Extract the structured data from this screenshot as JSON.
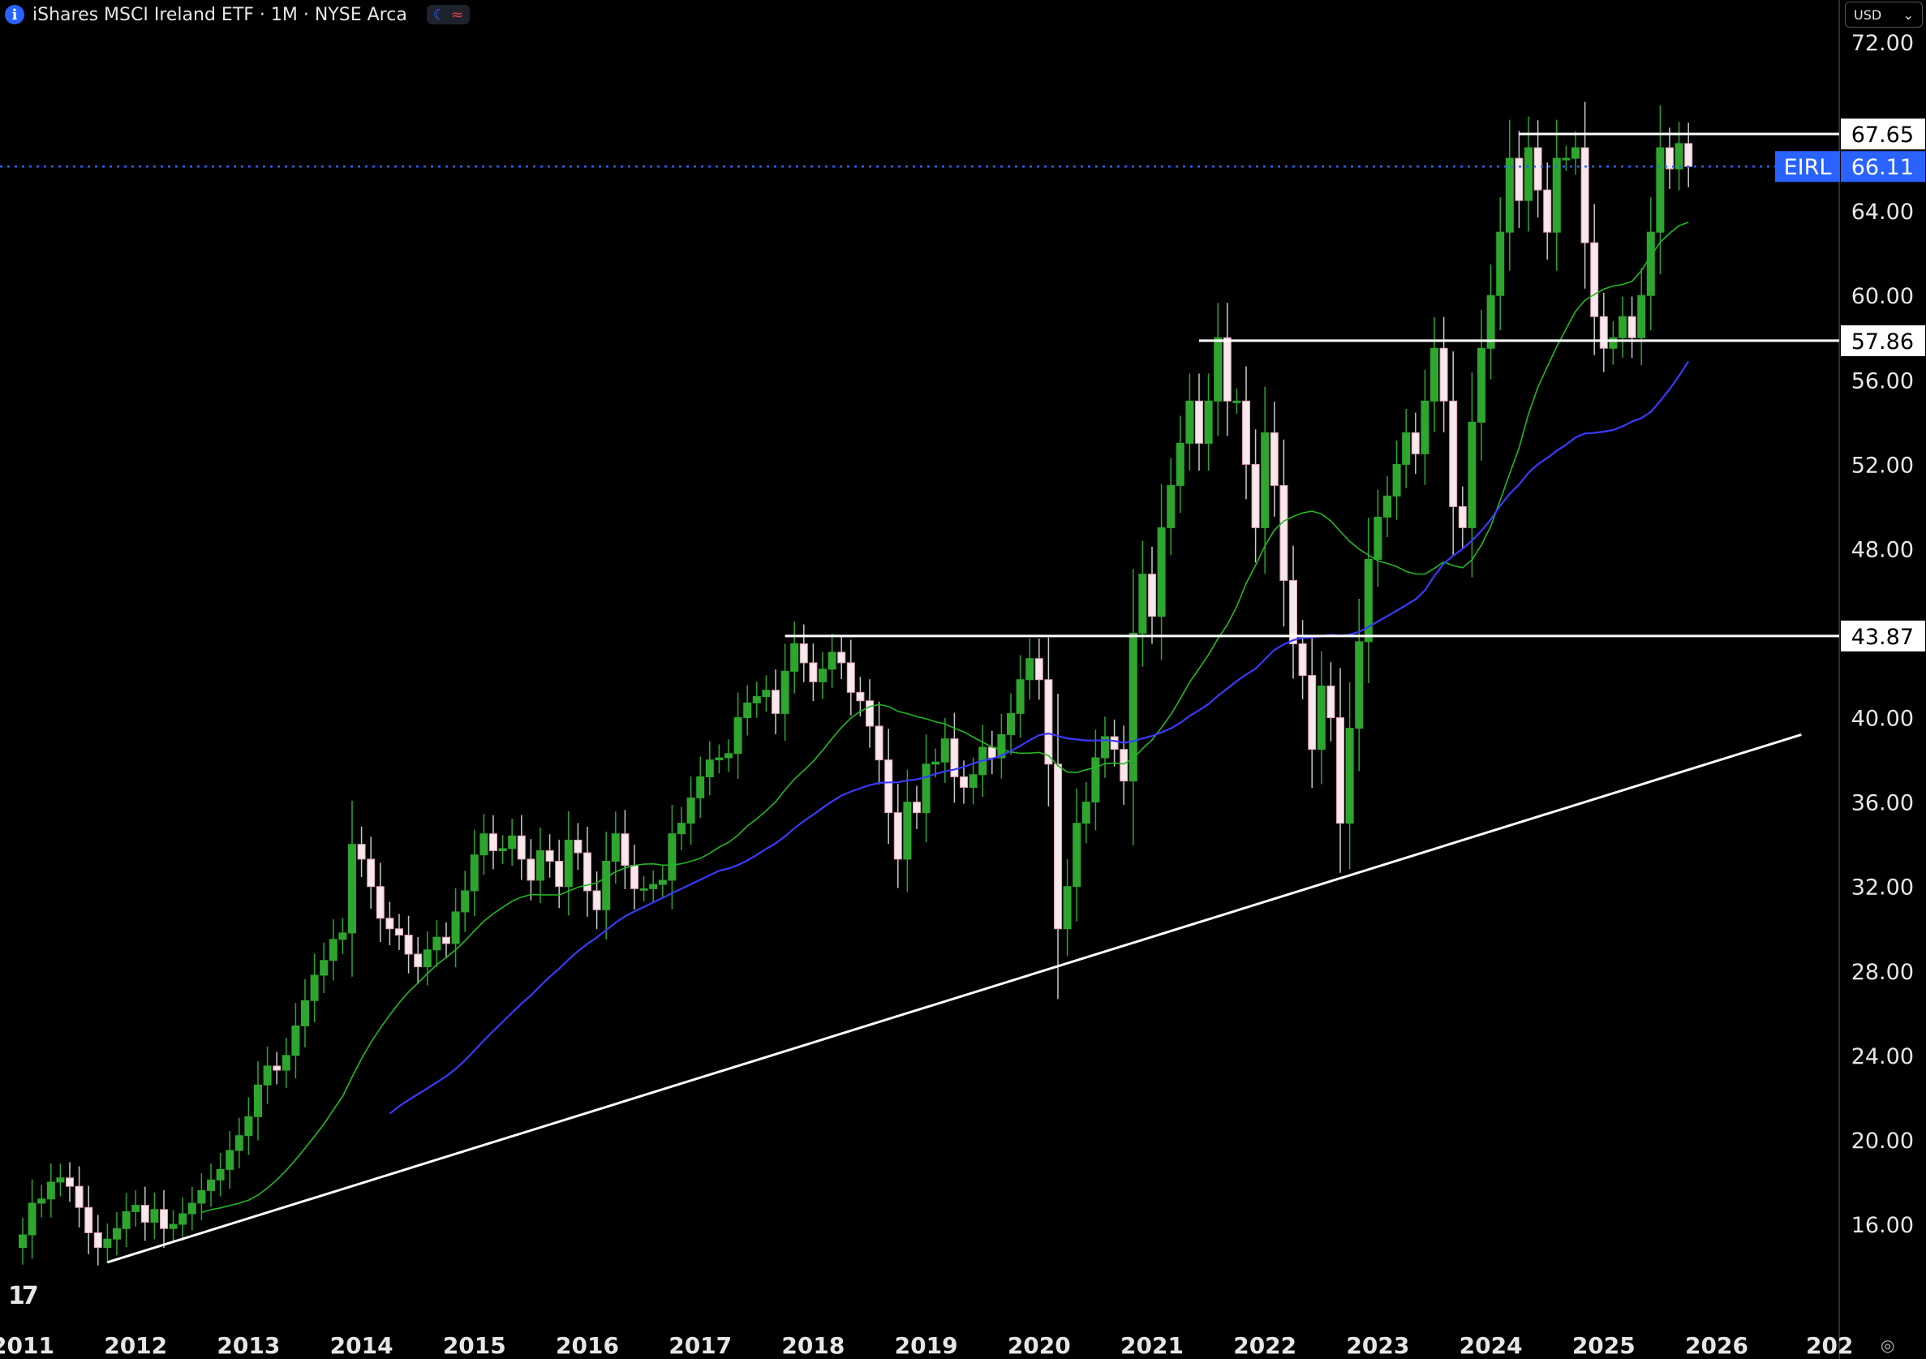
{
  "header": {
    "title": "iShares MSCI Ireland ETF · 1M · NYSE Arca",
    "icons": [
      "info-icon",
      "moon-icon",
      "wave-icon"
    ]
  },
  "currency": {
    "label": "USD",
    "icon": "chevron-down-icon"
  },
  "colors": {
    "background": "#000000",
    "up": "#2ea52e",
    "down": "#f7e8ec",
    "ma_green": "#22b822",
    "ma_blue": "#3a3aff",
    "last_price": "#2962ff",
    "level_line": "#ffffff"
  },
  "chart_data": {
    "type": "candlestick",
    "symbol": "EIRL",
    "interval": "1M",
    "last_price": 66.11,
    "y_scale": "linear",
    "y_axis": {
      "ticks": [
        16,
        20,
        24,
        28,
        32,
        36,
        40,
        48,
        52,
        56,
        60,
        64,
        72
      ],
      "labels": [
        "16.00",
        "20.00",
        "24.00",
        "28.00",
        "32.00",
        "36.00",
        "40.00",
        "48.00",
        "52.00",
        "56.00",
        "60.00",
        "64.00",
        "72.00"
      ]
    },
    "x_axis": {
      "ticks": [
        "2011",
        "2012",
        "2013",
        "2014",
        "2015",
        "2016",
        "2017",
        "2018",
        "2019",
        "2020",
        "2021",
        "2022",
        "2023",
        "2024",
        "2025",
        "2026",
        "202"
      ]
    },
    "levels": [
      {
        "value": 67.65,
        "label": "67.65",
        "from": "2024-04"
      },
      {
        "value": 57.86,
        "label": "57.86",
        "from": "2021-06"
      },
      {
        "value": 43.87,
        "label": "43.87",
        "from": "2017-10"
      }
    ],
    "trendline": {
      "from": {
        "x": "2011-10",
        "y": 14.2
      },
      "to": {
        "x": "2026-10",
        "y": 39.2
      }
    },
    "closes": [
      15.5,
      17.0,
      17.2,
      18.0,
      18.2,
      17.8,
      16.8,
      15.6,
      14.9,
      15.3,
      15.8,
      16.6,
      16.9,
      16.1,
      16.7,
      15.8,
      16.0,
      16.5,
      17.0,
      17.6,
      18.1,
      18.6,
      19.5,
      20.2,
      21.1,
      22.6,
      23.5,
      23.3,
      24.0,
      25.4,
      26.6,
      27.8,
      28.5,
      29.5,
      29.8,
      34.0,
      33.3,
      32.0,
      30.5,
      30.0,
      29.7,
      28.8,
      28.2,
      29.0,
      29.6,
      29.3,
      30.8,
      31.8,
      33.5,
      34.5,
      33.7,
      33.8,
      34.4,
      33.3,
      32.3,
      33.7,
      33.2,
      32.0,
      34.2,
      33.6,
      31.8,
      30.9,
      33.2,
      34.5,
      33.0,
      31.9,
      31.9,
      32.1,
      32.3,
      34.5,
      35.0,
      36.2,
      37.2,
      38.0,
      38.1,
      38.3,
      40.0,
      40.7,
      41.0,
      41.3,
      40.2,
      42.2,
      43.5,
      42.6,
      41.7,
      42.3,
      43.1,
      42.6,
      41.2,
      40.8,
      39.6,
      38.0,
      35.5,
      33.3,
      36.0,
      35.5,
      37.8,
      37.9,
      39.0,
      37.2,
      36.7,
      37.3,
      38.6,
      38.1,
      39.2,
      40.2,
      41.8,
      42.8,
      41.8,
      37.8,
      30.0,
      32.0,
      35.0,
      36.0,
      38.1,
      39.1,
      38.5,
      37.0,
      44.0,
      46.8,
      44.8,
      49.0,
      51.0,
      53.0,
      55.0,
      53.0,
      55.0,
      58.0,
      55.0,
      55.0,
      52.0,
      49.0,
      53.5,
      51.0,
      46.5,
      43.5,
      42.0,
      38.5,
      41.5,
      40.0,
      35.0,
      39.5,
      43.6,
      47.5,
      49.5,
      50.5,
      52.0,
      53.5,
      52.5,
      55.0,
      57.5,
      55.0,
      50.0,
      49.0,
      54.0,
      57.5,
      60.0,
      63.0,
      66.5,
      64.5,
      67.0,
      65.0,
      63.0,
      66.5,
      66.5,
      67.0,
      62.5,
      59.0,
      57.5,
      58.0,
      59.0,
      58.0,
      60.0,
      63.0,
      67.0,
      66.0,
      67.2,
      66.11
    ],
    "series": [
      {
        "name": "",
        "kind": "moving-average",
        "color": "green"
      },
      {
        "name": "",
        "kind": "moving-average",
        "color": "blue"
      }
    ]
  }
}
